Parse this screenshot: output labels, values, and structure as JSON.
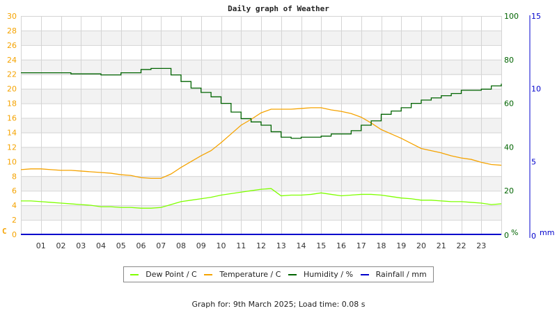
{
  "title": "Daily graph of Weather",
  "footer": "Graph for: 9th March 2025; Load time: 0.08 s",
  "colors": {
    "dew_point": "#7fff00",
    "temperature": "#f5a300",
    "humidity": "#006400",
    "rainfall": "#0000cc",
    "temp_axis": "#f5a300",
    "humidity_axis": "#006400",
    "rain_axis": "#0000cc",
    "grid": "#d4d4d4",
    "band": "#f2f2f2"
  },
  "legend": [
    {
      "label": "Dew Point / C",
      "color": "#7fff00"
    },
    {
      "label": "Temperature / C",
      "color": "#f5a300"
    },
    {
      "label": "Humidity / %",
      "color": "#006400"
    },
    {
      "label": "Rainfall / mm",
      "color": "#0000cc"
    }
  ],
  "chart_data": {
    "type": "line",
    "title": "Daily graph of Weather",
    "xlabel": "",
    "x_ticks": [
      "01",
      "02",
      "03",
      "04",
      "05",
      "06",
      "07",
      "08",
      "09",
      "10",
      "11",
      "12",
      "13",
      "14",
      "15",
      "16",
      "17",
      "18",
      "19",
      "20",
      "21",
      "22",
      "23"
    ],
    "xlim": [
      0,
      24
    ],
    "y_axes": [
      {
        "name": "left",
        "unit": "C",
        "ylim": [
          0,
          30
        ],
        "ticks": [
          0,
          2,
          4,
          6,
          8,
          10,
          12,
          14,
          16,
          18,
          20,
          22,
          24,
          26,
          28,
          30
        ]
      },
      {
        "name": "right1",
        "unit": "%",
        "ylim": [
          0,
          100
        ],
        "ticks": [
          0,
          20,
          40,
          60,
          80,
          100
        ]
      },
      {
        "name": "right2",
        "unit": "mm",
        "ylim": [
          0,
          15
        ],
        "ticks": [
          0,
          5,
          10,
          15
        ]
      }
    ],
    "grid": true,
    "legend_position": "bottom",
    "x": [
      0,
      0.5,
      1,
      1.5,
      2,
      2.5,
      3,
      3.5,
      4,
      4.5,
      5,
      5.5,
      6,
      6.5,
      7,
      7.5,
      8,
      8.5,
      9,
      9.5,
      10,
      10.5,
      11,
      11.5,
      12,
      12.5,
      13,
      13.5,
      14,
      14.5,
      15,
      15.5,
      16,
      16.5,
      17,
      17.5,
      18,
      18.5,
      19,
      19.5,
      20,
      20.5,
      21,
      21.5,
      22,
      22.5,
      23,
      23.5,
      24
    ],
    "series": [
      {
        "name": "Dew Point / C",
        "axis": "left",
        "values": [
          4.6,
          4.6,
          4.5,
          4.4,
          4.3,
          4.2,
          4.1,
          4.0,
          3.8,
          3.8,
          3.7,
          3.7,
          3.6,
          3.6,
          3.7,
          4.1,
          4.5,
          4.7,
          4.9,
          5.1,
          5.4,
          5.6,
          5.8,
          6.0,
          6.2,
          6.3,
          5.3,
          5.4,
          5.4,
          5.5,
          5.7,
          5.5,
          5.3,
          5.4,
          5.5,
          5.5,
          5.4,
          5.2,
          5.0,
          4.9,
          4.7,
          4.7,
          4.6,
          4.5,
          4.5,
          4.4,
          4.3,
          4.1,
          4.2
        ]
      },
      {
        "name": "Temperature / C",
        "axis": "left",
        "values": [
          8.9,
          9.0,
          9.0,
          8.9,
          8.8,
          8.8,
          8.7,
          8.6,
          8.5,
          8.4,
          8.2,
          8.1,
          7.8,
          7.7,
          7.7,
          8.3,
          9.2,
          10.0,
          10.8,
          11.5,
          12.6,
          13.8,
          15.0,
          15.8,
          16.7,
          17.2,
          17.2,
          17.2,
          17.3,
          17.4,
          17.4,
          17.1,
          16.9,
          16.6,
          16.1,
          15.3,
          14.4,
          13.8,
          13.2,
          12.5,
          11.8,
          11.5,
          11.2,
          10.8,
          10.5,
          10.3,
          9.9,
          9.6,
          9.5
        ]
      },
      {
        "name": "Humidity / %",
        "axis": "right1",
        "values": [
          74,
          74,
          74,
          74,
          74,
          73.5,
          73.5,
          73.5,
          73,
          73,
          74,
          74,
          75.5,
          76,
          76,
          73,
          70,
          67,
          65,
          63,
          60,
          56,
          53,
          51.5,
          50,
          47,
          44.5,
          44,
          44.5,
          44.5,
          45,
          46,
          46,
          47.5,
          50,
          52,
          55,
          56.5,
          58,
          60,
          61.5,
          62.5,
          63.5,
          64.5,
          66,
          66,
          66.5,
          68,
          69
        ]
      },
      {
        "name": "Rainfall / mm",
        "axis": "right2",
        "values": [
          0,
          0,
          0,
          0,
          0,
          0,
          0,
          0,
          0,
          0,
          0,
          0,
          0,
          0,
          0,
          0,
          0,
          0,
          0,
          0,
          0,
          0,
          0,
          0,
          0,
          0,
          0,
          0,
          0,
          0,
          0,
          0,
          0,
          0,
          0,
          0,
          0,
          0,
          0,
          0,
          0,
          0,
          0,
          0,
          0,
          0,
          0,
          0,
          0
        ]
      }
    ]
  }
}
